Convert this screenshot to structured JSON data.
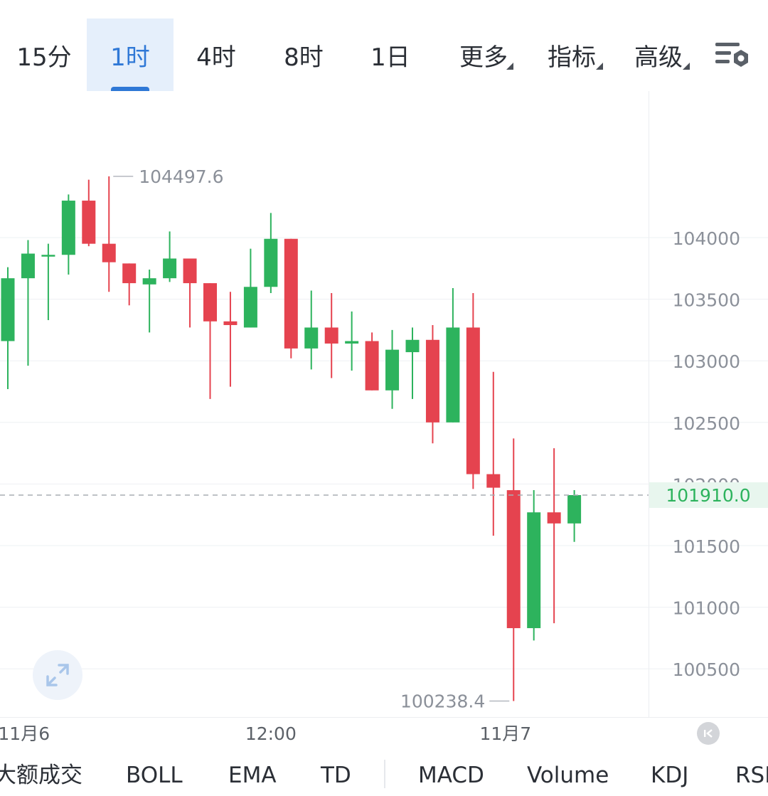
{
  "timeframe_tabs": [
    {
      "label": "15分"
    },
    {
      "label": "1时",
      "active": true
    },
    {
      "label": "4时"
    },
    {
      "label": "8时"
    },
    {
      "label": "1日"
    },
    {
      "label": "更多",
      "dropdown": true
    },
    {
      "label": "指标",
      "dropdown": true
    },
    {
      "label": "高级",
      "dropdown": true
    }
  ],
  "settings_icon": "chart-settings-icon",
  "indicator_tabs": [
    "大额成交",
    "BOLL",
    "EMA",
    "TD",
    "MACD",
    "Volume",
    "KDJ",
    "RSI"
  ],
  "colors": {
    "up": "#2db35d",
    "down": "#e5434f",
    "accent": "#2f78d6",
    "grid": "#eef0f3",
    "last_price": "#2db35d"
  },
  "chart_data": {
    "type": "candlestick",
    "y_ticks": [
      104000,
      103500,
      103000,
      102500,
      102000,
      101500,
      101000,
      100500
    ],
    "ylim": [
      100000,
      105000
    ],
    "x_tick_labels": [
      {
        "label": "11月6",
        "index": 0.8
      },
      {
        "label": "12:00",
        "index": 13.0
      },
      {
        "label": "11月7",
        "index": 24.6
      }
    ],
    "last_price": "101910.0",
    "high_annotation": "104497.6",
    "low_annotation": "100238.4",
    "candles": [
      {
        "o": 103160,
        "h": 103760,
        "l": 102770,
        "c": 103670
      },
      {
        "o": 103670,
        "h": 103980,
        "l": 102960,
        "c": 103870
      },
      {
        "o": 103850,
        "h": 103950,
        "l": 103330,
        "c": 103860
      },
      {
        "o": 103860,
        "h": 104350,
        "l": 103700,
        "c": 104300
      },
      {
        "o": 104300,
        "h": 104470,
        "l": 103930,
        "c": 103950
      },
      {
        "o": 103950,
        "h": 104497.6,
        "l": 103560,
        "c": 103800
      },
      {
        "o": 103790,
        "h": 103790,
        "l": 103450,
        "c": 103630
      },
      {
        "o": 103620,
        "h": 103740,
        "l": 103230,
        "c": 103670
      },
      {
        "o": 103670,
        "h": 104050,
        "l": 103640,
        "c": 103830
      },
      {
        "o": 103830,
        "h": 103830,
        "l": 103270,
        "c": 103630
      },
      {
        "o": 103630,
        "h": 103630,
        "l": 102690,
        "c": 103320
      },
      {
        "o": 103320,
        "h": 103560,
        "l": 102790,
        "c": 103290
      },
      {
        "o": 103270,
        "h": 103910,
        "l": 103270,
        "c": 103600
      },
      {
        "o": 103600,
        "h": 104200,
        "l": 103550,
        "c": 103990
      },
      {
        "o": 103990,
        "h": 103990,
        "l": 103020,
        "c": 103100
      },
      {
        "o": 103100,
        "h": 103570,
        "l": 102930,
        "c": 103270
      },
      {
        "o": 103270,
        "h": 103550,
        "l": 102860,
        "c": 103140
      },
      {
        "o": 103140,
        "h": 103400,
        "l": 102920,
        "c": 103160
      },
      {
        "o": 103160,
        "h": 103230,
        "l": 102760,
        "c": 102760
      },
      {
        "o": 102760,
        "h": 103250,
        "l": 102610,
        "c": 103090
      },
      {
        "o": 103070,
        "h": 103270,
        "l": 102690,
        "c": 103170
      },
      {
        "o": 103170,
        "h": 103290,
        "l": 102330,
        "c": 102500
      },
      {
        "o": 102500,
        "h": 103590,
        "l": 102500,
        "c": 103270
      },
      {
        "o": 103270,
        "h": 103550,
        "l": 101960,
        "c": 102080
      },
      {
        "o": 102080,
        "h": 102910,
        "l": 101580,
        "c": 101970
      },
      {
        "o": 101950,
        "h": 102370,
        "l": 100238.4,
        "c": 100830
      },
      {
        "o": 100830,
        "h": 101950,
        "l": 100730,
        "c": 101770
      },
      {
        "o": 101770,
        "h": 102290,
        "l": 100870,
        "c": 101680
      },
      {
        "o": 101680,
        "h": 101950,
        "l": 101530,
        "c": 101910
      }
    ]
  }
}
